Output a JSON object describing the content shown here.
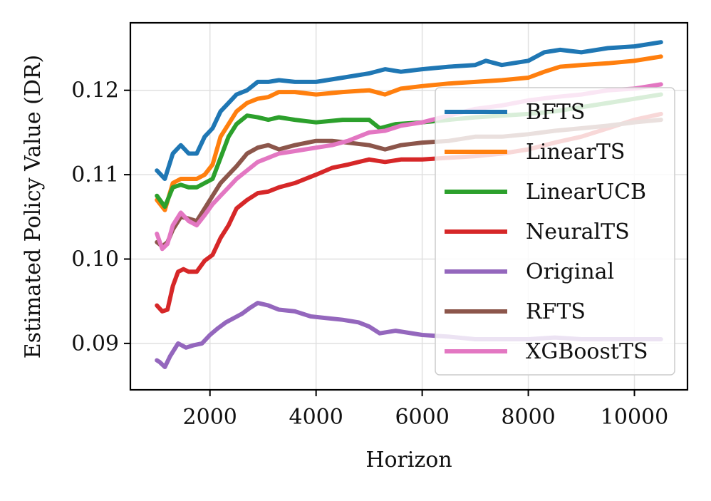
{
  "chart_data": {
    "type": "line",
    "title": "",
    "xlabel": "Horizon",
    "ylabel": "Estimated Policy Value (DR)",
    "xlim": [
      500,
      11000
    ],
    "ylim": [
      0.0845,
      0.128
    ],
    "xticks": [
      2000,
      4000,
      6000,
      8000,
      10000
    ],
    "xtick_labels": [
      "2000",
      "4000",
      "6000",
      "8000",
      "10000"
    ],
    "yticks": [
      0.09,
      0.1,
      0.11,
      0.12
    ],
    "ytick_labels": [
      "0.09",
      "0.10",
      "0.11",
      "0.12"
    ],
    "grid": true,
    "legend_position": "right",
    "series": [
      {
        "name": "BFTS",
        "color": "#1f77b4",
        "x": [
          1000,
          1150,
          1300,
          1450,
          1600,
          1750,
          1900,
          2050,
          2200,
          2350,
          2500,
          2700,
          2900,
          3100,
          3300,
          3600,
          4000,
          4500,
          5000,
          5300,
          5600,
          6000,
          6500,
          7000,
          7200,
          7500,
          8000,
          8300,
          8600,
          9000,
          9500,
          10000,
          10500
        ],
        "y": [
          0.1105,
          0.1095,
          0.1125,
          0.1135,
          0.1125,
          0.1125,
          0.1145,
          0.1155,
          0.1175,
          0.1185,
          0.1195,
          0.12,
          0.121,
          0.121,
          0.1212,
          0.121,
          0.121,
          0.1215,
          0.122,
          0.1225,
          0.1222,
          0.1225,
          0.1228,
          0.123,
          0.1235,
          0.123,
          0.1235,
          0.1245,
          0.1248,
          0.1245,
          0.125,
          0.1252,
          0.1257
        ]
      },
      {
        "name": "LinearTS",
        "color": "#ff7f0e",
        "x": [
          1000,
          1150,
          1300,
          1450,
          1600,
          1750,
          1900,
          2050,
          2200,
          2350,
          2500,
          2700,
          2900,
          3100,
          3300,
          3600,
          4000,
          4500,
          5000,
          5300,
          5600,
          6000,
          6500,
          7000,
          7500,
          8000,
          8300,
          8600,
          9000,
          9500,
          10000,
          10500
        ],
        "y": [
          0.107,
          0.1058,
          0.109,
          0.1095,
          0.1095,
          0.1095,
          0.11,
          0.1112,
          0.1145,
          0.116,
          0.1175,
          0.1185,
          0.119,
          0.1192,
          0.1198,
          0.1198,
          0.1195,
          0.1198,
          0.12,
          0.1195,
          0.1202,
          0.1205,
          0.1208,
          0.121,
          0.1212,
          0.1215,
          0.1222,
          0.1228,
          0.123,
          0.1232,
          0.1235,
          0.124
        ]
      },
      {
        "name": "LinearUCB",
        "color": "#2ca02c",
        "x": [
          1000,
          1150,
          1300,
          1450,
          1600,
          1750,
          1900,
          2050,
          2200,
          2350,
          2500,
          2700,
          2900,
          3100,
          3300,
          3600,
          4000,
          4500,
          5000,
          5200,
          5500,
          6000,
          6500,
          7000,
          7500,
          8000,
          8500,
          9000,
          9500,
          10000,
          10500
        ],
        "y": [
          0.1075,
          0.1062,
          0.1085,
          0.1088,
          0.1085,
          0.1085,
          0.109,
          0.1095,
          0.112,
          0.1145,
          0.116,
          0.117,
          0.1168,
          0.1165,
          0.1168,
          0.1165,
          0.1162,
          0.1165,
          0.1165,
          0.1155,
          0.116,
          0.1162,
          0.1165,
          0.1168,
          0.117,
          0.1172,
          0.1175,
          0.118,
          0.1185,
          0.119,
          0.1195
        ]
      },
      {
        "name": "NeuralTS",
        "color": "#d62728",
        "x": [
          1000,
          1100,
          1200,
          1300,
          1400,
          1500,
          1600,
          1750,
          1900,
          2050,
          2200,
          2350,
          2500,
          2700,
          2900,
          3100,
          3300,
          3600,
          4000,
          4300,
          4600,
          5000,
          5300,
          5600,
          6000,
          6500,
          7000,
          7500,
          8000,
          8500,
          9000,
          9500,
          10000,
          10500
        ],
        "y": [
          0.0945,
          0.0938,
          0.094,
          0.0968,
          0.0985,
          0.0988,
          0.0985,
          0.0985,
          0.0998,
          0.1005,
          0.1025,
          0.104,
          0.106,
          0.107,
          0.1078,
          0.108,
          0.1085,
          0.109,
          0.11,
          0.1108,
          0.1112,
          0.1118,
          0.1115,
          0.1118,
          0.1118,
          0.112,
          0.1122,
          0.1125,
          0.113,
          0.1138,
          0.1145,
          0.1155,
          0.1165,
          0.1172
        ]
      },
      {
        "name": "Original",
        "color": "#9467bd",
        "x": [
          1000,
          1050,
          1150,
          1250,
          1400,
          1550,
          1700,
          1850,
          2000,
          2150,
          2300,
          2450,
          2600,
          2750,
          2900,
          3100,
          3300,
          3600,
          3900,
          4200,
          4500,
          4800,
          5000,
          5200,
          5500,
          6000,
          6500,
          7000,
          7500,
          8000,
          8500,
          9000,
          9500,
          10000,
          10500
        ],
        "y": [
          0.088,
          0.0878,
          0.0872,
          0.0885,
          0.09,
          0.0895,
          0.0898,
          0.09,
          0.091,
          0.0918,
          0.0925,
          0.093,
          0.0935,
          0.0942,
          0.0948,
          0.0945,
          0.094,
          0.0938,
          0.0932,
          0.093,
          0.0928,
          0.0925,
          0.092,
          0.0912,
          0.0915,
          0.091,
          0.0908,
          0.0905,
          0.0905,
          0.0905,
          0.0907,
          0.0905,
          0.0905,
          0.0905,
          0.0905
        ]
      },
      {
        "name": "RFTS",
        "color": "#8c564b",
        "x": [
          1000,
          1100,
          1200,
          1300,
          1450,
          1600,
          1750,
          1900,
          2050,
          2200,
          2350,
          2500,
          2700,
          2900,
          3100,
          3300,
          3600,
          4000,
          4300,
          4600,
          5000,
          5300,
          5600,
          6000,
          6500,
          7000,
          7500,
          8000,
          8500,
          9000,
          9500,
          10000,
          10500
        ],
        "y": [
          0.102,
          0.1015,
          0.102,
          0.1035,
          0.105,
          0.1048,
          0.1045,
          0.106,
          0.1075,
          0.109,
          0.11,
          0.111,
          0.1125,
          0.1132,
          0.1135,
          0.113,
          0.1135,
          0.114,
          0.114,
          0.1138,
          0.1135,
          0.113,
          0.1135,
          0.1138,
          0.114,
          0.1145,
          0.1145,
          0.1148,
          0.1152,
          0.1155,
          0.1158,
          0.1162,
          0.1165
        ]
      },
      {
        "name": "XGBoostTS",
        "color": "#e377c2",
        "x": [
          1000,
          1100,
          1200,
          1300,
          1450,
          1600,
          1750,
          1900,
          2050,
          2200,
          2350,
          2500,
          2700,
          2900,
          3100,
          3300,
          3600,
          4000,
          4300,
          4600,
          5000,
          5300,
          5600,
          6000,
          6500,
          7000,
          7500,
          8000,
          8500,
          9000,
          9500,
          10000,
          10500
        ],
        "y": [
          0.103,
          0.1012,
          0.1018,
          0.104,
          0.1055,
          0.1045,
          0.104,
          0.1052,
          0.1065,
          0.1075,
          0.1085,
          0.1095,
          0.1105,
          0.1115,
          0.112,
          0.1125,
          0.1128,
          0.1132,
          0.1135,
          0.114,
          0.115,
          0.1152,
          0.1158,
          0.1162,
          0.117,
          0.1178,
          0.1182,
          0.1188,
          0.1192,
          0.1195,
          0.12,
          0.1202,
          0.1207
        ]
      }
    ]
  }
}
